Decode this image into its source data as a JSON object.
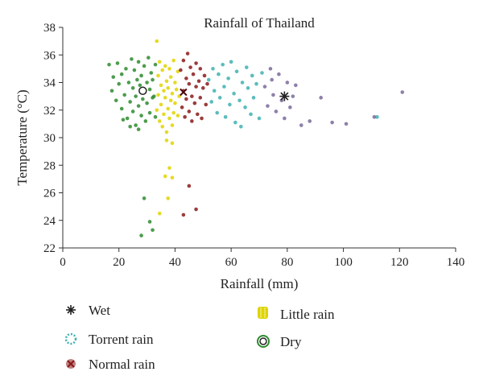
{
  "chart_data": {
    "type": "scatter",
    "title": "Rainfall of Thailand",
    "xlabel": "Rainfall (mm)",
    "ylabel": "Temperature (°C)",
    "xlim": [
      0,
      140
    ],
    "ylim": [
      22,
      38
    ],
    "xticks": [
      "0",
      "20",
      "40",
      "60",
      "80",
      "100",
      "120",
      "140"
    ],
    "yticks": [
      "22",
      "24",
      "26",
      "28",
      "30",
      "32",
      "34",
      "36",
      "38"
    ],
    "grid": false,
    "legend_position": "bottom",
    "legend": [
      "Wet",
      "Torrent rain",
      "Normal rain",
      "Little rain",
      "Dry"
    ],
    "series": [
      {
        "name": "Dry",
        "color": "#2e8b2e",
        "points": [
          [
            16.5,
            35.3
          ],
          [
            17.5,
            33.4
          ],
          [
            18,
            34.4
          ],
          [
            19,
            32.7
          ],
          [
            19.5,
            35.4
          ],
          [
            20,
            33.9
          ],
          [
            21,
            34.6
          ],
          [
            21,
            32.1
          ],
          [
            22,
            33.1
          ],
          [
            22.5,
            35.0
          ],
          [
            23,
            31.4
          ],
          [
            23.5,
            34.0
          ],
          [
            24,
            32.6
          ],
          [
            24.5,
            35.7
          ],
          [
            25,
            33.6
          ],
          [
            25,
            31.9
          ],
          [
            25.5,
            34.9
          ],
          [
            26,
            33.0
          ],
          [
            26,
            30.9
          ],
          [
            26.5,
            34.2
          ],
          [
            27,
            32.3
          ],
          [
            27,
            35.5
          ],
          [
            27.5,
            33.8
          ],
          [
            28,
            31.6
          ],
          [
            28,
            34.5
          ],
          [
            28.5,
            32.8
          ],
          [
            29,
            35.2
          ],
          [
            29,
            33.3
          ],
          [
            29.5,
            31.2
          ],
          [
            30,
            34.0
          ],
          [
            30,
            32.5
          ],
          [
            30.5,
            35.8
          ],
          [
            31,
            33.5
          ],
          [
            31,
            31.8
          ],
          [
            31.5,
            34.7
          ],
          [
            32,
            32.9
          ],
          [
            32,
            34.2
          ],
          [
            32.5,
            33.0
          ],
          [
            33,
            35.3
          ],
          [
            33,
            31.5
          ],
          [
            21.5,
            31.3
          ],
          [
            24,
            30.8
          ],
          [
            27,
            30.6
          ],
          [
            29,
            25.6
          ],
          [
            28,
            22.9
          ],
          [
            31,
            23.9
          ],
          [
            32,
            23.3
          ]
        ]
      },
      {
        "name": "Little rain",
        "color": "#e0d400",
        "points": [
          [
            33.5,
            32.0
          ],
          [
            34,
            34.5
          ],
          [
            34,
            33.1
          ],
          [
            34.5,
            35.5
          ],
          [
            34.5,
            31.2
          ],
          [
            35,
            33.8
          ],
          [
            35,
            32.4
          ],
          [
            35.5,
            34.9
          ],
          [
            35.5,
            30.8
          ],
          [
            36,
            33.4
          ],
          [
            36,
            31.7
          ],
          [
            36.5,
            35.2
          ],
          [
            36.5,
            32.9
          ],
          [
            37,
            34.1
          ],
          [
            37,
            30.4
          ],
          [
            37.5,
            33.6
          ],
          [
            37.5,
            32.1
          ],
          [
            38,
            35.0
          ],
          [
            38,
            31.4
          ],
          [
            38.5,
            34.4
          ],
          [
            38.5,
            32.7
          ],
          [
            39,
            33.2
          ],
          [
            39,
            30.9
          ],
          [
            39.5,
            35.6
          ],
          [
            39.5,
            31.8
          ],
          [
            40,
            34.0
          ],
          [
            40,
            32.5
          ],
          [
            40.5,
            33.5
          ],
          [
            41,
            34.8
          ],
          [
            41,
            31.6
          ],
          [
            41.5,
            33.0
          ],
          [
            33.5,
            37.0
          ],
          [
            37,
            29.8
          ],
          [
            39,
            29.6
          ],
          [
            38,
            27.8
          ],
          [
            36.5,
            27.2
          ],
          [
            39,
            27.1
          ],
          [
            37.5,
            25.6
          ],
          [
            34.5,
            24.5
          ]
        ]
      },
      {
        "name": "Normal rain",
        "color": "#8b1a1a",
        "points": [
          [
            42,
            34.9
          ],
          [
            42.5,
            32.2
          ],
          [
            43,
            35.6
          ],
          [
            43,
            33.4
          ],
          [
            43.5,
            31.5
          ],
          [
            44,
            34.3
          ],
          [
            44,
            32.8
          ],
          [
            44.5,
            36.1
          ],
          [
            45,
            33.9
          ],
          [
            45,
            31.9
          ],
          [
            45.5,
            35.1
          ],
          [
            46,
            33.0
          ],
          [
            46,
            31.2
          ],
          [
            46.5,
            34.6
          ],
          [
            47,
            32.5
          ],
          [
            47.5,
            35.4
          ],
          [
            47.5,
            33.7
          ],
          [
            48,
            31.7
          ],
          [
            48.5,
            34.1
          ],
          [
            49,
            32.9
          ],
          [
            49,
            35.0
          ],
          [
            49.5,
            31.4
          ],
          [
            50,
            33.6
          ],
          [
            50.5,
            34.5
          ],
          [
            51,
            32.4
          ],
          [
            51.5,
            33.9
          ],
          [
            43,
            24.4
          ],
          [
            45,
            26.5
          ],
          [
            47.5,
            24.8
          ]
        ]
      },
      {
        "name": "Torrent rain",
        "color": "#3fb0b0",
        "points": [
          [
            52,
            34.2
          ],
          [
            53,
            32.6
          ],
          [
            53.5,
            35.0
          ],
          [
            54,
            33.4
          ],
          [
            55,
            31.8
          ],
          [
            55.5,
            34.6
          ],
          [
            56,
            32.9
          ],
          [
            57,
            35.3
          ],
          [
            57.5,
            33.7
          ],
          [
            58,
            31.5
          ],
          [
            59,
            34.3
          ],
          [
            59.5,
            32.4
          ],
          [
            60,
            35.5
          ],
          [
            61,
            33.2
          ],
          [
            61.5,
            31.1
          ],
          [
            62,
            34.8
          ],
          [
            63,
            32.7
          ],
          [
            63.5,
            30.8
          ],
          [
            64,
            34.0
          ],
          [
            65,
            32.2
          ],
          [
            65.5,
            35.1
          ],
          [
            66,
            33.6
          ],
          [
            67,
            31.7
          ],
          [
            67.5,
            34.5
          ],
          [
            68,
            32.9
          ],
          [
            69,
            33.9
          ],
          [
            70,
            31.4
          ],
          [
            71,
            34.7
          ],
          [
            112,
            31.5
          ]
        ]
      },
      {
        "name": "Wet",
        "color": "#7a6a9a",
        "points": [
          [
            72,
            33.7
          ],
          [
            73,
            32.3
          ],
          [
            74,
            35.0
          ],
          [
            74.5,
            34.2
          ],
          [
            75,
            33.1
          ],
          [
            76,
            31.9
          ],
          [
            77,
            34.6
          ],
          [
            78,
            32.7
          ],
          [
            79,
            31.4
          ],
          [
            80,
            34.0
          ],
          [
            81,
            32.2
          ],
          [
            82,
            33.0
          ],
          [
            83,
            33.8
          ],
          [
            85,
            30.9
          ],
          [
            88,
            31.2
          ],
          [
            92,
            32.9
          ],
          [
            96,
            31.1
          ],
          [
            101,
            31.0
          ],
          [
            111,
            31.5
          ],
          [
            121,
            33.3
          ]
        ]
      }
    ],
    "centroids": [
      {
        "name": "Dry",
        "x": 28.5,
        "y": 33.4
      },
      {
        "name": "Normal rain",
        "x": 43,
        "y": 33.3
      },
      {
        "name": "Wet",
        "x": 79,
        "y": 33.0
      }
    ]
  }
}
